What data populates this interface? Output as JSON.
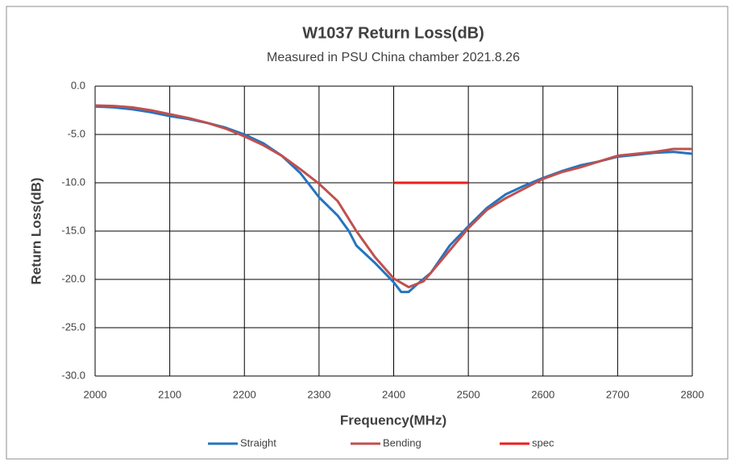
{
  "chart_data": {
    "type": "line",
    "title": "W1037 Return Loss(dB)",
    "subtitle": "Measured in PSU China chamber 2021.8.26",
    "x_label": "Frequency(MHz)",
    "y_label": "Return Loss(dB)",
    "xlim": [
      2000,
      2800
    ],
    "xticks": [
      2000,
      2100,
      2200,
      2300,
      2400,
      2500,
      2600,
      2700,
      2800
    ],
    "ylim": [
      -30,
      0
    ],
    "yticks": [
      {
        "value": 0,
        "label": "0.0"
      },
      {
        "value": -5,
        "label": "-5.0"
      },
      {
        "value": -10,
        "label": "-10.0"
      },
      {
        "value": -15,
        "label": "-15.0"
      },
      {
        "value": -20,
        "label": "-20.0"
      },
      {
        "value": -25,
        "label": "-25.0"
      },
      {
        "value": -30,
        "label": "-30.0"
      }
    ],
    "grid": true,
    "legend": "bottom",
    "series": [
      {
        "name": "Straight",
        "color": "#2474c0",
        "x": [
          2000,
          2025,
          2050,
          2075,
          2100,
          2125,
          2150,
          2175,
          2200,
          2225,
          2250,
          2275,
          2300,
          2325,
          2340,
          2350,
          2375,
          2400,
          2410,
          2420,
          2430,
          2450,
          2475,
          2500,
          2525,
          2550,
          2575,
          2600,
          2625,
          2650,
          2675,
          2700,
          2725,
          2750,
          2775,
          2800
        ],
        "values": [
          -2.1,
          -2.2,
          -2.4,
          -2.7,
          -3.1,
          -3.4,
          -3.8,
          -4.3,
          -5.0,
          -5.9,
          -7.2,
          -9.0,
          -11.5,
          -13.4,
          -15.0,
          -16.5,
          -18.3,
          -20.3,
          -21.3,
          -21.3,
          -20.6,
          -19.3,
          -16.5,
          -14.5,
          -12.6,
          -11.2,
          -10.3,
          -9.5,
          -8.8,
          -8.2,
          -7.8,
          -7.3,
          -7.1,
          -6.9,
          -6.8,
          -7.0
        ]
      },
      {
        "name": "Bending",
        "color": "#c0504d",
        "x": [
          2000,
          2025,
          2050,
          2075,
          2100,
          2125,
          2150,
          2175,
          2200,
          2225,
          2250,
          2275,
          2300,
          2325,
          2350,
          2375,
          2400,
          2420,
          2440,
          2450,
          2475,
          2500,
          2525,
          2550,
          2575,
          2600,
          2625,
          2650,
          2675,
          2700,
          2725,
          2750,
          2775,
          2800
        ],
        "values": [
          -2.0,
          -2.05,
          -2.2,
          -2.5,
          -2.9,
          -3.3,
          -3.8,
          -4.4,
          -5.2,
          -6.1,
          -7.2,
          -8.6,
          -10.1,
          -11.9,
          -15.0,
          -17.7,
          -19.9,
          -20.8,
          -20.2,
          -19.3,
          -17.0,
          -14.7,
          -12.8,
          -11.6,
          -10.6,
          -9.6,
          -8.9,
          -8.4,
          -7.8,
          -7.2,
          -7.0,
          -6.8,
          -6.5,
          -6.5
        ]
      },
      {
        "name": "spec",
        "color": "#ee1c1c",
        "x": [
          2400,
          2500
        ],
        "values": [
          -10,
          -10
        ]
      }
    ]
  }
}
